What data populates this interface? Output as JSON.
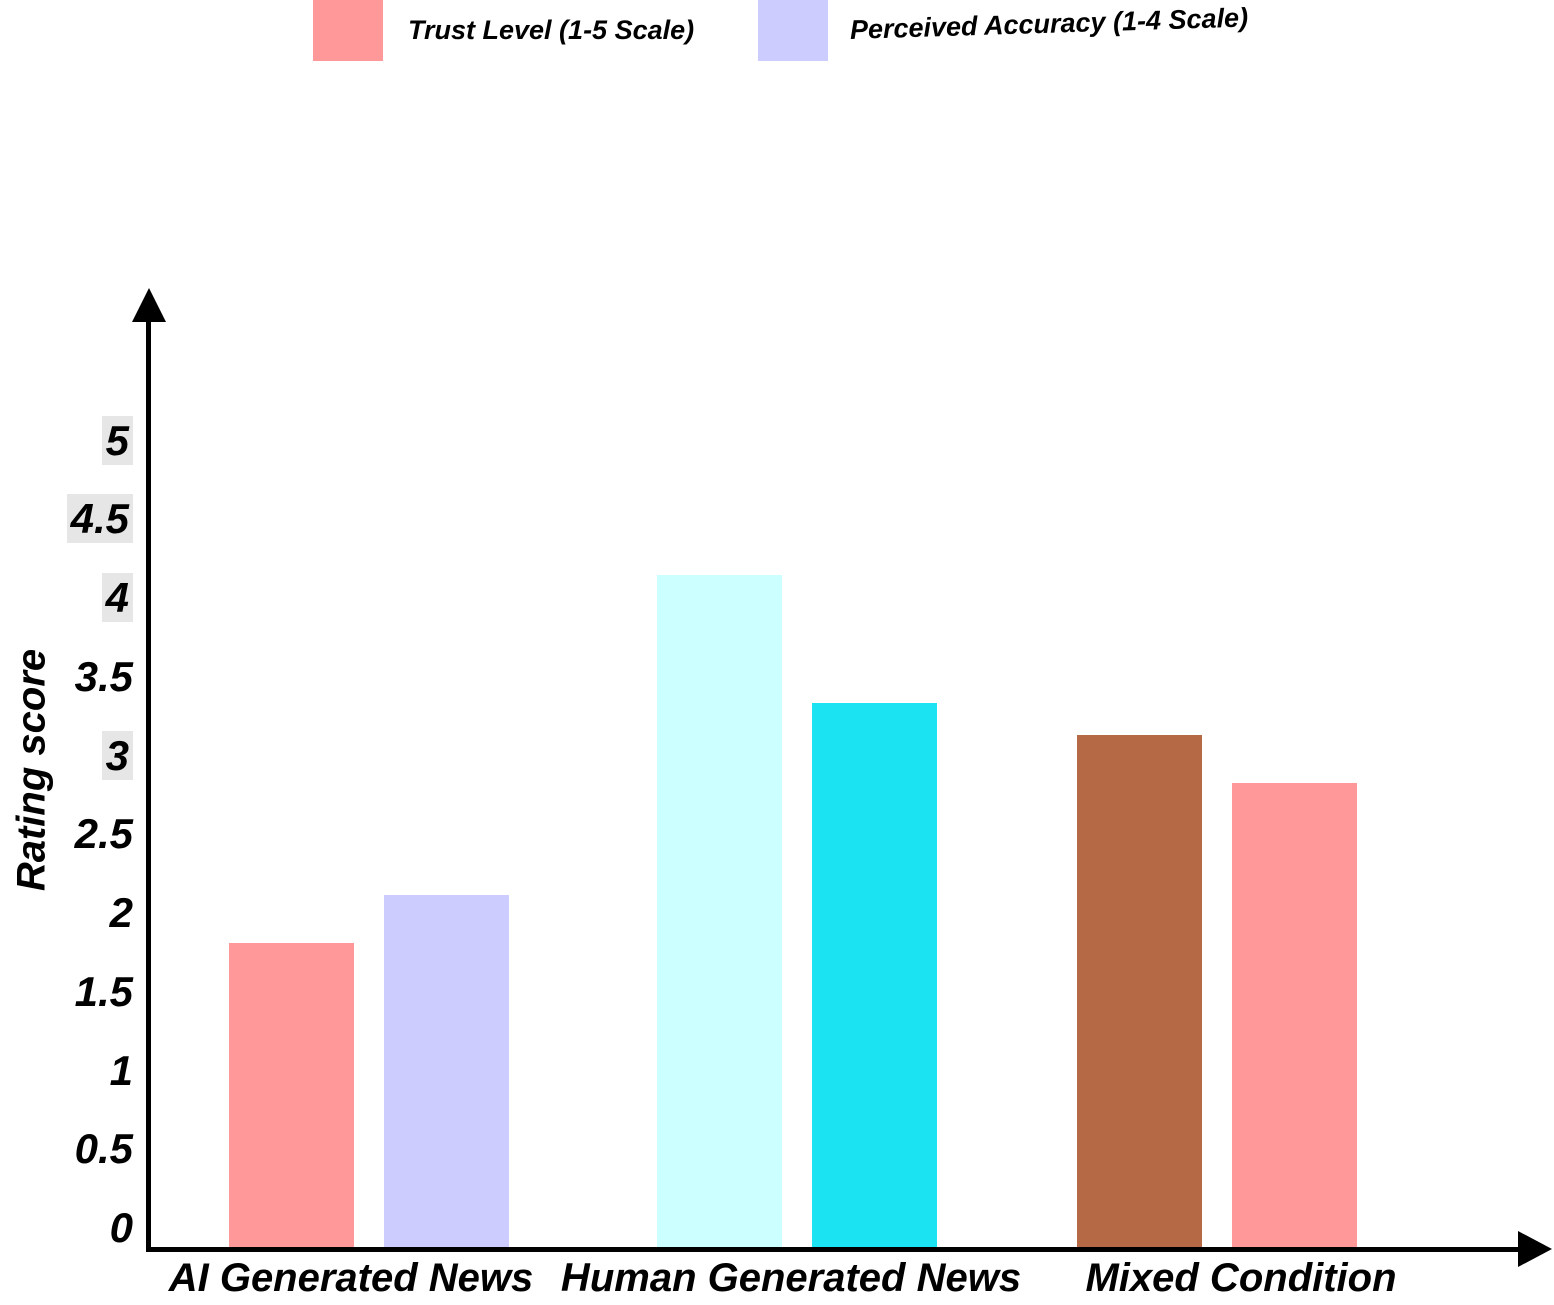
{
  "legend": {
    "items": [
      {
        "label": "Trust Level (1-5 Scale)",
        "color": "#FF9999"
      },
      {
        "label": "Perceived Accuracy (1-4 Scale)",
        "color": "#CCCCFF"
      }
    ]
  },
  "chart_data": {
    "type": "bar",
    "title": "",
    "xlabel": "",
    "ylabel": "Rating score",
    "ylim": [
      0,
      5
    ],
    "yticks": [
      0,
      0.5,
      1,
      1.5,
      2,
      2.5,
      3,
      3.5,
      4,
      4.5,
      5
    ],
    "ytick_highlighted": [
      3,
      4,
      4.5,
      5
    ],
    "grid": false,
    "legend_position": "top",
    "categories": [
      "AI Generated News",
      "Human Generated News",
      "Mixed Condition"
    ],
    "series": [
      {
        "name": "Trust Level (1-5 Scale)",
        "legend_color": "#FF9999",
        "values": [
          1.9,
          4.2,
          3.2
        ],
        "bar_colors": [
          "#FF9999",
          "#CCFFFF",
          "#B56A45"
        ]
      },
      {
        "name": "Perceived Accuracy (1-4 Scale)",
        "legend_color": "#CCCCFF",
        "values": [
          2.2,
          3.4,
          2.9
        ],
        "bar_colors": [
          "#CCCCFF",
          "#1BE3F1",
          "#FF9999"
        ]
      }
    ]
  }
}
